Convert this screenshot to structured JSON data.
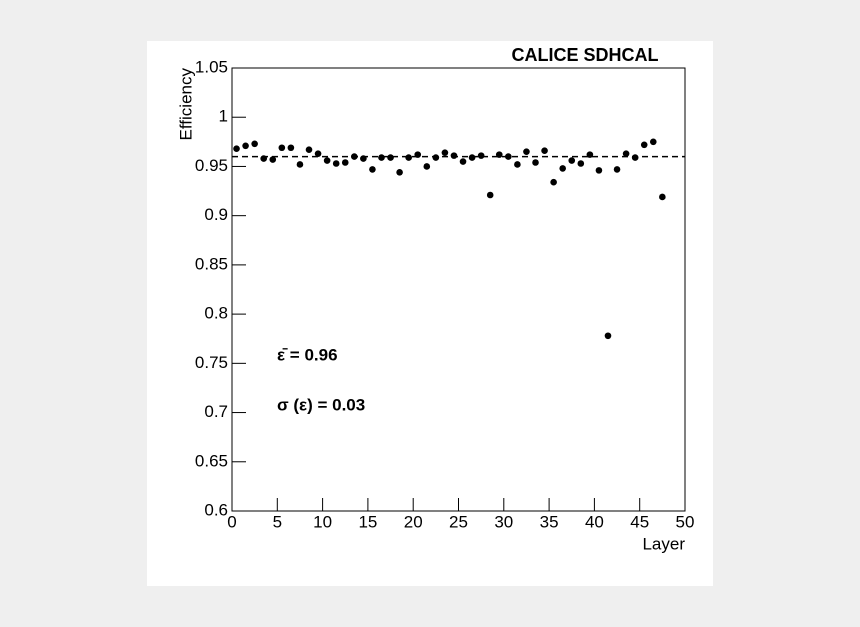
{
  "chart_data": {
    "type": "scatter",
    "title": "CALICE SDHCAL",
    "x_label": "Layer",
    "y_label": "Efficiency",
    "x": [
      0.5,
      1.5,
      2.5,
      3.5,
      4.5,
      5.5,
      6.5,
      7.5,
      8.5,
      9.5,
      10.5,
      11.5,
      12.5,
      13.5,
      14.5,
      15.5,
      16.5,
      17.5,
      18.5,
      19.5,
      20.5,
      21.5,
      22.5,
      23.5,
      24.5,
      25.5,
      26.5,
      27.5,
      28.5,
      29.5,
      30.5,
      31.5,
      32.5,
      33.5,
      34.5,
      35.5,
      36.5,
      37.5,
      38.5,
      39.5,
      40.5,
      41.5,
      42.5,
      43.5,
      44.5,
      45.5,
      46.5,
      47.5
    ],
    "values": [
      0.968,
      0.971,
      0.973,
      0.958,
      0.957,
      0.969,
      0.969,
      0.952,
      0.967,
      0.963,
      0.956,
      0.953,
      0.954,
      0.96,
      0.958,
      0.947,
      0.959,
      0.959,
      0.944,
      0.959,
      0.962,
      0.95,
      0.959,
      0.964,
      0.961,
      0.955,
      0.959,
      0.961,
      0.921,
      0.962,
      0.96,
      0.952,
      0.965,
      0.954,
      0.966,
      0.934,
      0.948,
      0.956,
      0.953,
      0.962,
      0.946,
      0.778,
      0.947,
      0.963,
      0.959,
      0.972,
      0.975,
      0.919
    ],
    "color": "#000000",
    "mean_line": 0.96,
    "annotations": [
      "ε̄ = 0.96",
      "σ (ε) = 0.03"
    ],
    "xlim": [
      0,
      50
    ],
    "xticks": [
      0,
      5,
      10,
      15,
      20,
      25,
      30,
      35,
      40,
      45,
      50
    ],
    "ylim": [
      0.6,
      1.05
    ],
    "yticks": [
      0.6,
      0.65,
      0.7,
      0.75,
      0.8,
      0.85,
      0.9,
      0.95,
      1,
      1.05
    ]
  }
}
